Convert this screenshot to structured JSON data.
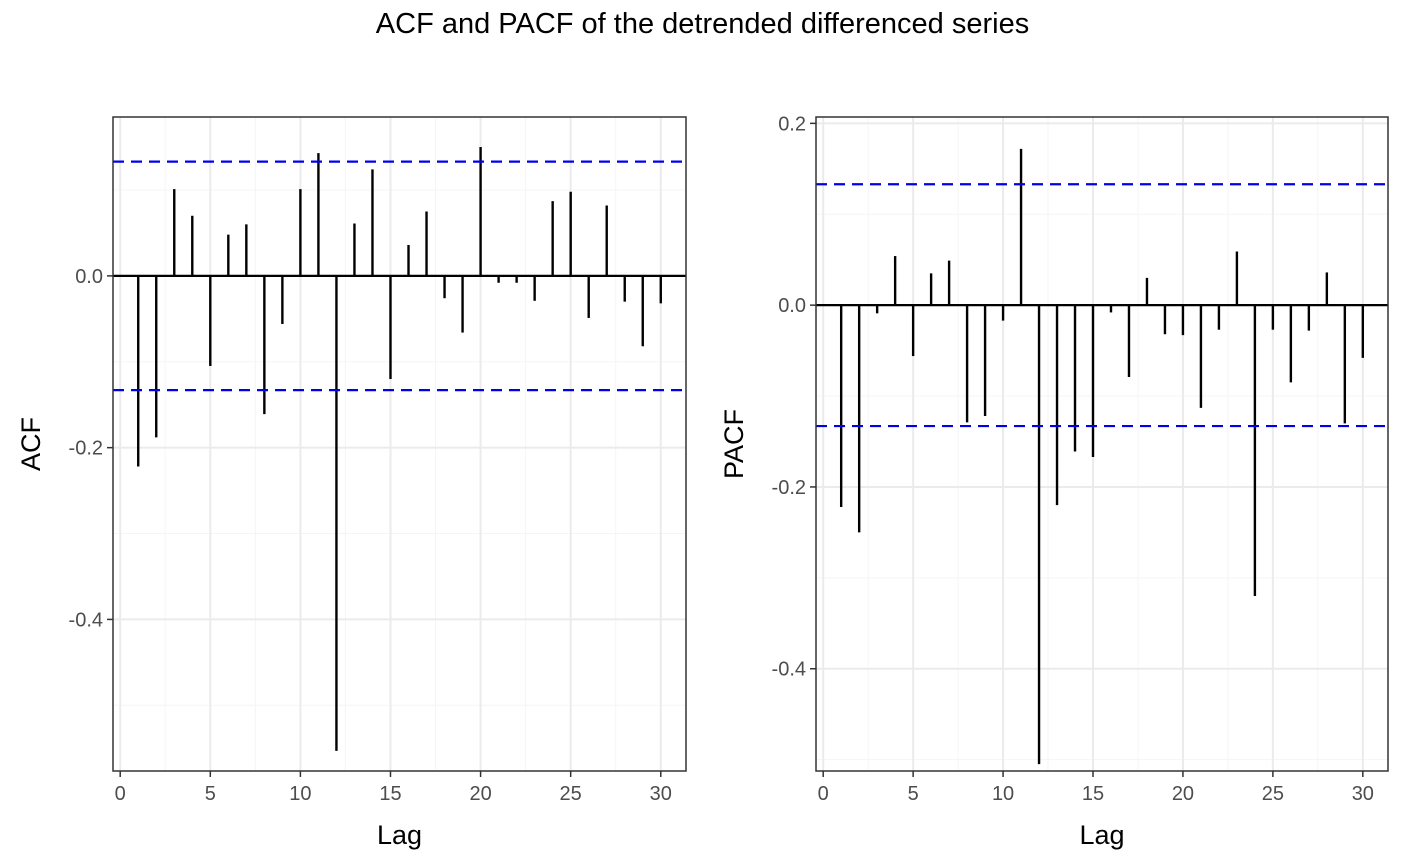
{
  "title": "ACF and PACF of the detrended differenced series",
  "colors": {
    "bar": "#000000",
    "ci": "#0000ee",
    "grid_major": "#ebebeb",
    "grid_minor": "#f5f5f5",
    "frame": "#333333"
  },
  "chart_data": [
    {
      "type": "bar",
      "xlabel": "Lag",
      "ylabel": "ACF",
      "xlim": [
        -0.4,
        31.4
      ],
      "ylim": [
        -0.5765,
        0.185
      ],
      "x_ticks": [
        0,
        5,
        10,
        15,
        20,
        25,
        30
      ],
      "x_tick_labels": [
        "0",
        "5",
        "10",
        "15",
        "20",
        "25",
        "30"
      ],
      "y_ticks": [
        0.0,
        -0.2,
        -0.4
      ],
      "y_tick_labels": [
        "0.0",
        "-0.2",
        "-0.4"
      ],
      "ci": 0.133,
      "lags": [
        1,
        2,
        3,
        4,
        5,
        6,
        7,
        8,
        9,
        10,
        11,
        12,
        13,
        14,
        15,
        16,
        17,
        18,
        19,
        20,
        21,
        22,
        23,
        24,
        25,
        26,
        27,
        28,
        29,
        30
      ],
      "values": [
        -0.222,
        -0.188,
        0.101,
        0.07,
        -0.105,
        0.048,
        0.06,
        -0.161,
        -0.056,
        0.101,
        0.143,
        -0.553,
        0.061,
        0.124,
        -0.12,
        0.036,
        0.075,
        -0.026,
        -0.066,
        0.15,
        -0.008,
        -0.008,
        -0.029,
        0.087,
        0.098,
        -0.049,
        0.082,
        -0.03,
        -0.082,
        -0.032
      ]
    },
    {
      "type": "bar",
      "xlabel": "Lag",
      "ylabel": "PACF",
      "xlim": [
        -0.4,
        31.4
      ],
      "ylim": [
        -0.5125,
        0.207
      ],
      "x_ticks": [
        0,
        5,
        10,
        15,
        20,
        25,
        30
      ],
      "x_tick_labels": [
        "0",
        "5",
        "10",
        "15",
        "20",
        "25",
        "30"
      ],
      "y_ticks": [
        0.2,
        0.0,
        -0.2,
        -0.4
      ],
      "y_tick_labels": [
        "0.2",
        "0.0",
        "-0.2",
        "-0.4"
      ],
      "ci": 0.133,
      "lags": [
        1,
        2,
        3,
        4,
        5,
        6,
        7,
        8,
        9,
        10,
        11,
        12,
        13,
        14,
        15,
        16,
        17,
        18,
        19,
        20,
        21,
        22,
        23,
        24,
        25,
        26,
        27,
        28,
        29,
        30
      ],
      "values": [
        -0.222,
        -0.25,
        -0.009,
        0.054,
        -0.056,
        0.035,
        0.049,
        -0.129,
        -0.122,
        -0.017,
        0.172,
        -0.505,
        -0.22,
        -0.161,
        -0.167,
        -0.008,
        -0.079,
        0.03,
        -0.032,
        -0.033,
        -0.113,
        -0.027,
        0.059,
        -0.32,
        -0.027,
        -0.085,
        -0.028,
        0.036,
        -0.13,
        -0.058
      ]
    }
  ]
}
